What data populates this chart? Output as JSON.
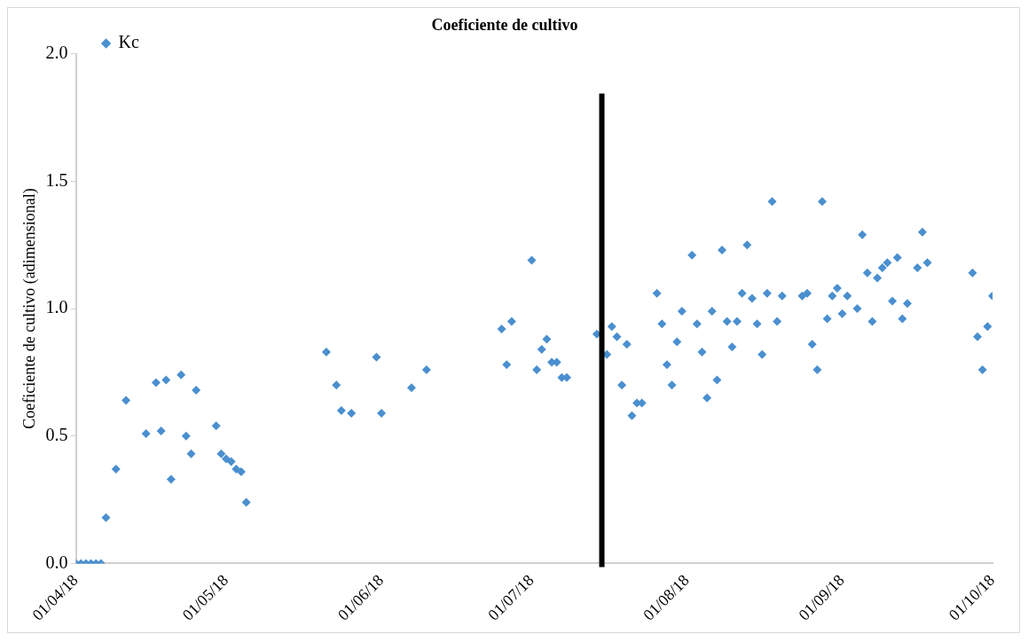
{
  "chart_data": {
    "type": "scatter",
    "title": "Coeficiente de cultivo",
    "ylabel": "Coeficiente de cultivo (adimensional)",
    "xlim": [
      "2018-04-01",
      "2018-10-01"
    ],
    "xticks": [
      {
        "value": "2018-04-01",
        "label": "01/04/18"
      },
      {
        "value": "2018-05-01",
        "label": "01/05/18"
      },
      {
        "value": "2018-06-01",
        "label": "01/06/18"
      },
      {
        "value": "2018-07-01",
        "label": "01/07/18"
      },
      {
        "value": "2018-08-01",
        "label": "01/08/18"
      },
      {
        "value": "2018-09-01",
        "label": "01/09/18"
      },
      {
        "value": "2018-10-01",
        "label": "01/10/18"
      }
    ],
    "ylim": [
      0,
      2
    ],
    "yticks": [
      {
        "value": 0,
        "label": "0.0"
      },
      {
        "value": 0.5,
        "label": "0.5"
      },
      {
        "value": 1,
        "label": "1.0"
      },
      {
        "value": 1.5,
        "label": "1.5"
      },
      {
        "value": 2,
        "label": "2.0"
      }
    ],
    "grid": false,
    "legend": "top left",
    "marker": "diamond",
    "ref_lines": [
      {
        "axis": "x",
        "value": "2018-07-15",
        "color": "#000000"
      }
    ],
    "series": [
      {
        "name": "Kc",
        "color": "#4a8fcf",
        "x": [
          "2018-04-01",
          "2018-04-02",
          "2018-04-03",
          "2018-04-04",
          "2018-04-05",
          "2018-04-06",
          "2018-04-07",
          "2018-04-09",
          "2018-04-11",
          "2018-04-15",
          "2018-04-17",
          "2018-04-18",
          "2018-04-19",
          "2018-04-20",
          "2018-04-22",
          "2018-04-23",
          "2018-04-24",
          "2018-04-25",
          "2018-04-29",
          "2018-04-30",
          "2018-05-01",
          "2018-05-02",
          "2018-05-03",
          "2018-05-04",
          "2018-05-05",
          "2018-05-21",
          "2018-05-23",
          "2018-05-24",
          "2018-05-26",
          "2018-05-31",
          "2018-06-01",
          "2018-06-07",
          "2018-06-10",
          "2018-06-25",
          "2018-06-26",
          "2018-06-27",
          "2018-07-01",
          "2018-07-02",
          "2018-07-03",
          "2018-07-04",
          "2018-07-05",
          "2018-07-06",
          "2018-07-07",
          "2018-07-08",
          "2018-07-14",
          "2018-07-16",
          "2018-07-17",
          "2018-07-18",
          "2018-07-19",
          "2018-07-20",
          "2018-07-21",
          "2018-07-22",
          "2018-07-23",
          "2018-07-26",
          "2018-07-27",
          "2018-07-28",
          "2018-07-29",
          "2018-07-30",
          "2018-07-31",
          "2018-08-02",
          "2018-08-03",
          "2018-08-04",
          "2018-08-05",
          "2018-08-06",
          "2018-08-07",
          "2018-08-08",
          "2018-08-09",
          "2018-08-10",
          "2018-08-11",
          "2018-08-12",
          "2018-08-13",
          "2018-08-14",
          "2018-08-15",
          "2018-08-16",
          "2018-08-17",
          "2018-08-18",
          "2018-08-19",
          "2018-08-20",
          "2018-08-24",
          "2018-08-25",
          "2018-08-26",
          "2018-08-27",
          "2018-08-28",
          "2018-08-29",
          "2018-08-30",
          "2018-08-31",
          "2018-09-01",
          "2018-09-02",
          "2018-09-04",
          "2018-09-05",
          "2018-09-06",
          "2018-09-07",
          "2018-09-08",
          "2018-09-09",
          "2018-09-10",
          "2018-09-11",
          "2018-09-12",
          "2018-09-13",
          "2018-09-14",
          "2018-09-16",
          "2018-09-17",
          "2018-09-18",
          "2018-09-27",
          "2018-09-28",
          "2018-09-29",
          "2018-09-30",
          "2018-10-01"
        ],
        "values": [
          0,
          0,
          0,
          0,
          0,
          0,
          0.18,
          0.37,
          0.64,
          0.51,
          0.71,
          0.52,
          0.72,
          0.33,
          0.74,
          0.5,
          0.43,
          0.68,
          0.54,
          0.43,
          0.41,
          0.4,
          0.37,
          0.36,
          0.24,
          0.83,
          0.7,
          0.6,
          0.59,
          0.81,
          0.59,
          0.69,
          0.76,
          0.92,
          0.78,
          0.95,
          1.19,
          0.76,
          0.84,
          0.88,
          0.79,
          0.79,
          0.73,
          0.73,
          0.9,
          0.82,
          0.93,
          0.89,
          0.7,
          0.86,
          0.58,
          0.63,
          0.63,
          1.06,
          0.94,
          0.78,
          0.7,
          0.87,
          0.99,
          1.21,
          0.94,
          0.83,
          0.65,
          0.99,
          0.72,
          1.23,
          0.95,
          0.85,
          0.95,
          1.06,
          1.25,
          1.04,
          0.94,
          0.82,
          1.06,
          1.42,
          0.95,
          1.05,
          1.05,
          1.06,
          0.86,
          0.76,
          1.42,
          0.96,
          1.05,
          1.08,
          0.98,
          1.05,
          1.0,
          1.29,
          1.14,
          0.95,
          1.12,
          1.16,
          1.18,
          1.03,
          1.2,
          0.96,
          1.02,
          1.16,
          1.3,
          1.18,
          1.14,
          0.89,
          0.76,
          0.93,
          1.05
        ]
      }
    ]
  }
}
